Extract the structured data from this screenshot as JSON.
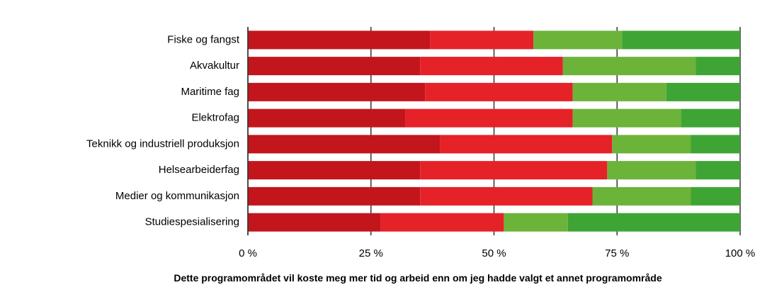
{
  "chart_data": {
    "type": "stacked-bar-horizontal",
    "categories": [
      "Fiske og fangst",
      "Akvakultur",
      "Maritime fag",
      "Elektrofag",
      "Teknikk og industriell produksjon",
      "Helsearbeiderfag",
      "Medier og kommunikasjon",
      "Studiespesialisering"
    ],
    "series": [
      {
        "color": "#c3161c",
        "values": [
          37,
          35,
          36,
          32,
          39,
          35,
          35,
          27
        ]
      },
      {
        "color": "#e52228",
        "values": [
          21,
          29,
          30,
          34,
          35,
          38,
          35,
          25
        ]
      },
      {
        "color": "#6cb33a",
        "values": [
          18,
          27,
          19,
          22,
          16,
          18,
          20,
          13
        ]
      },
      {
        "color": "#3ea535",
        "values": [
          24,
          9,
          15,
          12,
          10,
          9,
          10,
          35
        ]
      }
    ],
    "xlim": [
      0,
      100
    ],
    "xticks": [
      {
        "value": 0,
        "label": "0 %"
      },
      {
        "value": 25,
        "label": "25 %"
      },
      {
        "value": 50,
        "label": "50 %"
      },
      {
        "value": 75,
        "label": "75 %"
      },
      {
        "value": 100,
        "label": "100 %"
      }
    ],
    "xlabel": "Dette programområdet vil koste meg mer tid og arbeid enn om jeg hadde valgt et annet programområde",
    "grid": true
  }
}
